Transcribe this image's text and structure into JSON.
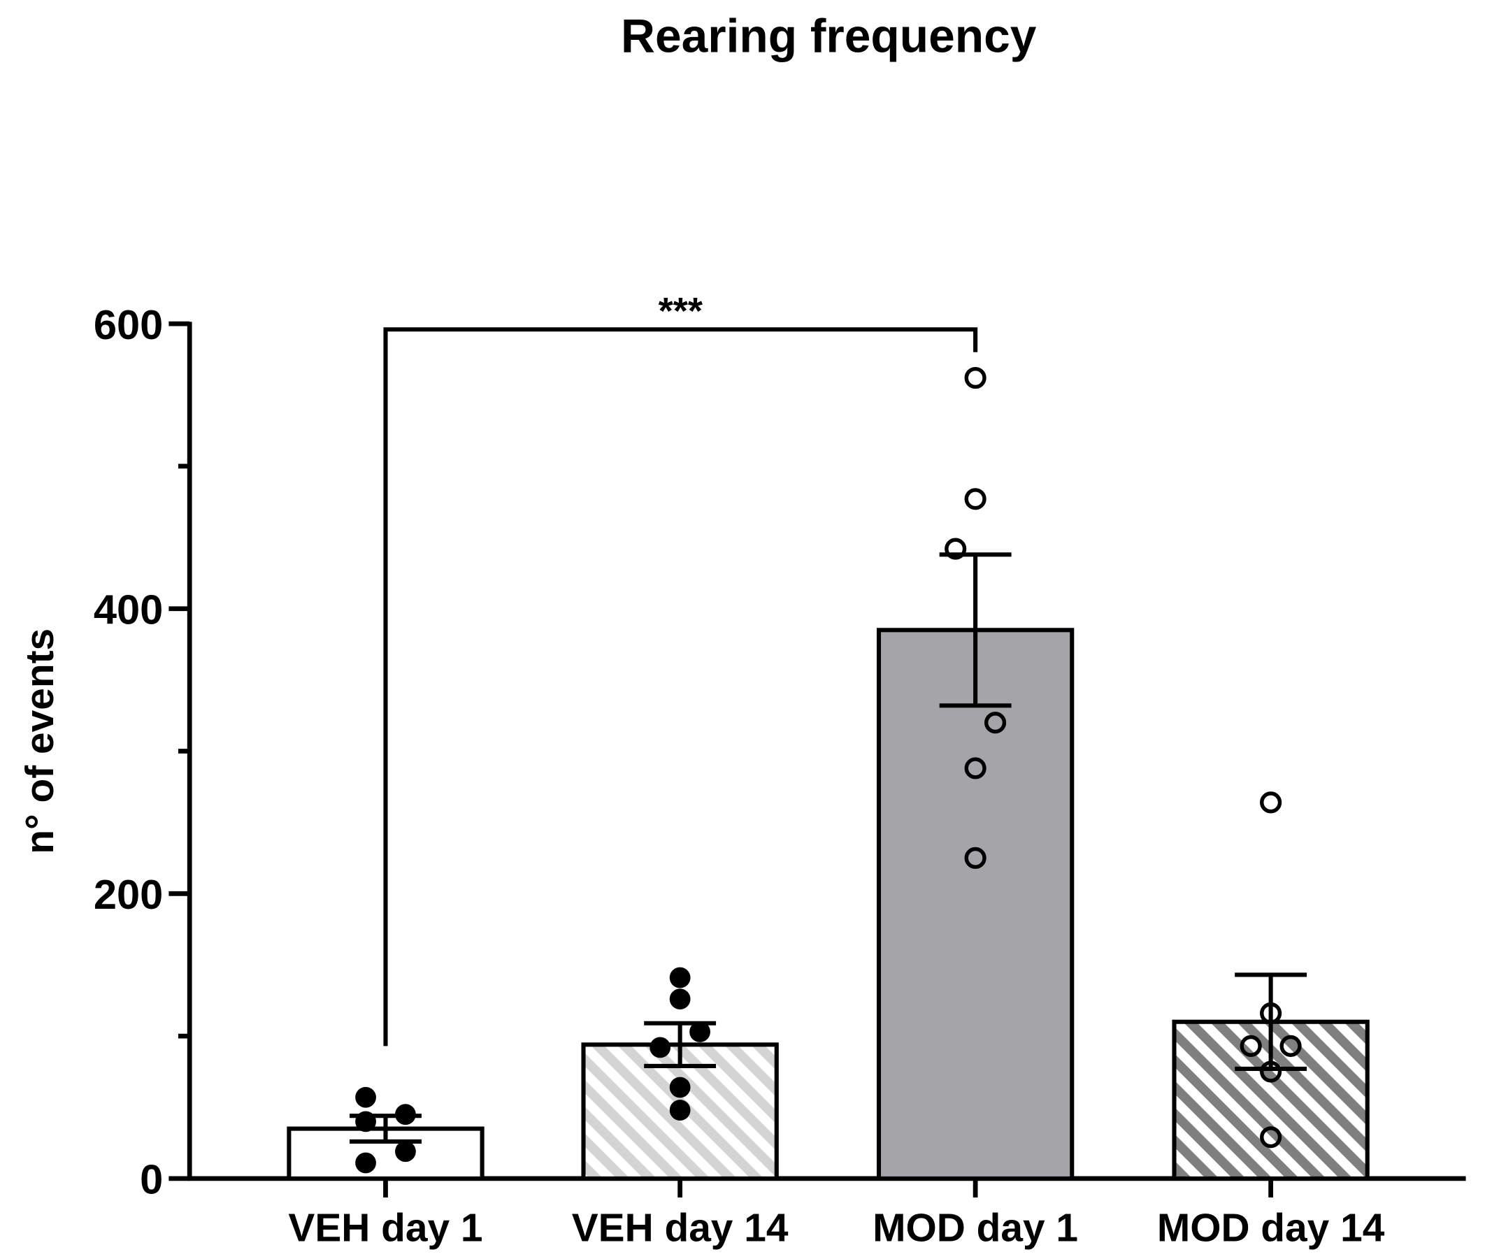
{
  "chart_data": {
    "type": "bar",
    "title": "Rearing frequency",
    "y_label": "n° of events",
    "categories": [
      "VEH day 1",
      "VEH day 14",
      "MOD day 1",
      "MOD day 14"
    ],
    "values": [
      35,
      94,
      385,
      110
    ],
    "errors": [
      9,
      15,
      53,
      33
    ],
    "points": [
      [
        57,
        40,
        45,
        19,
        11
      ],
      [
        141,
        126,
        92,
        103,
        64,
        48
      ],
      [
        562,
        477,
        442,
        320,
        288,
        225
      ],
      [
        264,
        116,
        93,
        93,
        75,
        29
      ]
    ],
    "fills": [
      "#ffffff",
      "#d4d4d4",
      "#a5a5a9",
      "#7f7f7f"
    ],
    "patterns": [
      "solid",
      "hatch",
      "solid",
      "hatch"
    ],
    "marker_filled": [
      true,
      true,
      false,
      false
    ],
    "ylim": [
      0,
      600
    ],
    "yticks": [
      0,
      200,
      400,
      600
    ],
    "minor_yticks": [
      100,
      300,
      500
    ],
    "annotation": "***"
  }
}
